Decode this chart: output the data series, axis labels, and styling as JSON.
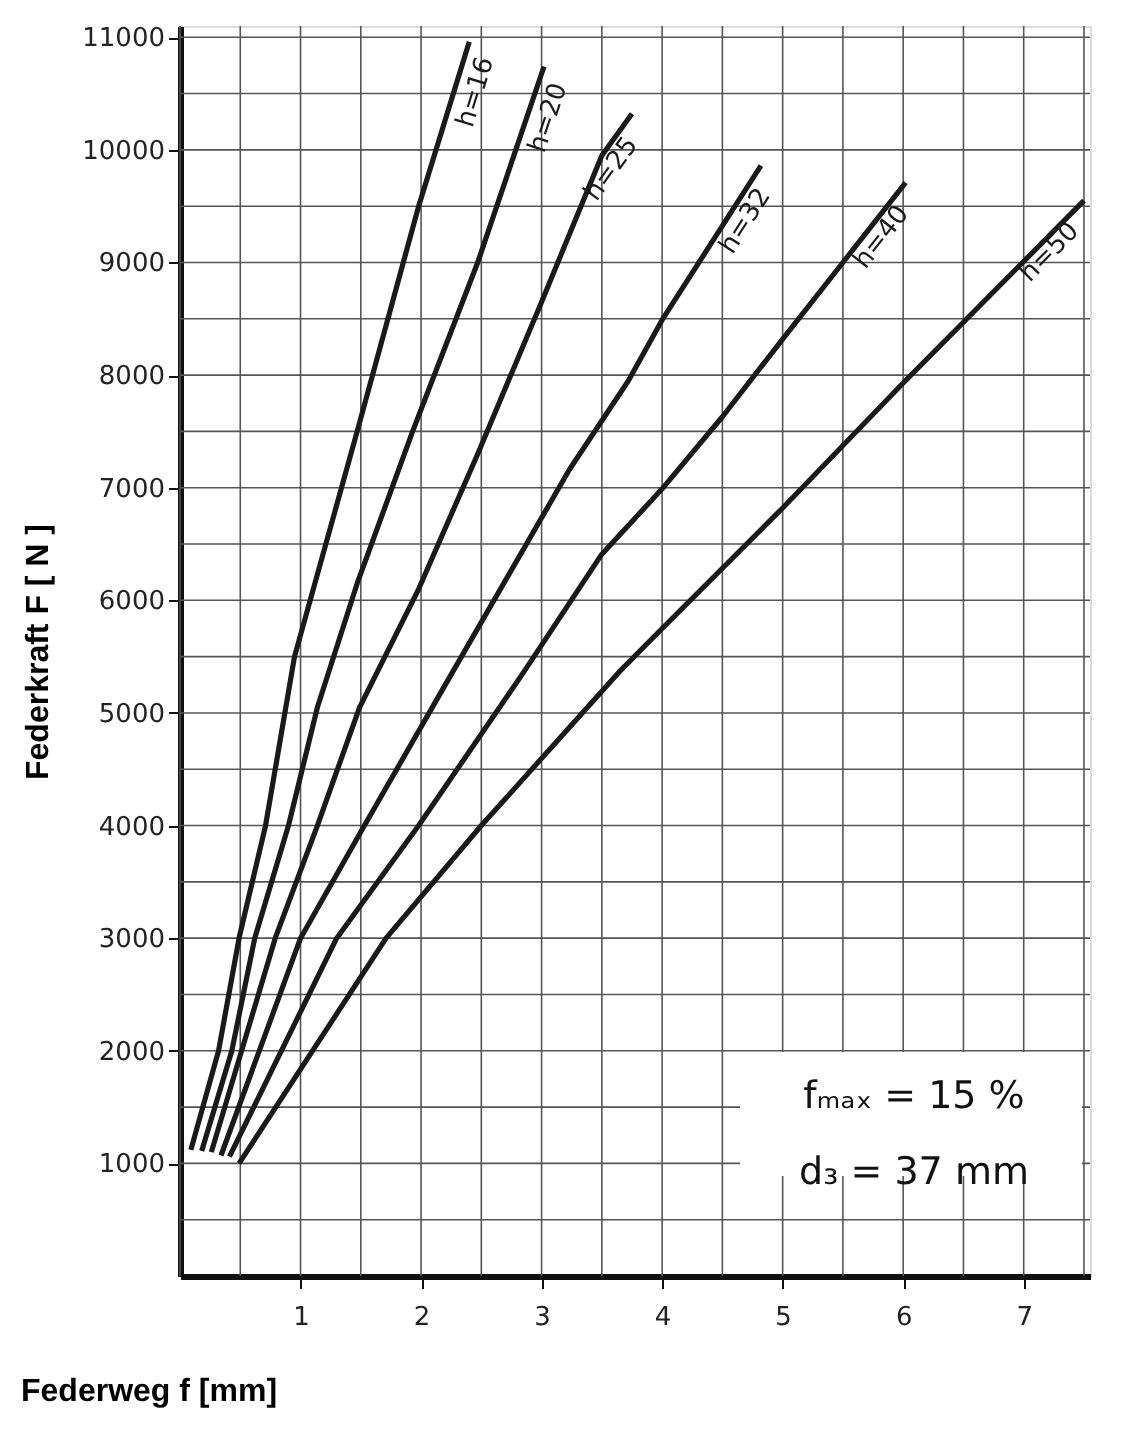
{
  "chart_data": {
    "type": "line",
    "xlabel": "Federweg f [mm]",
    "ylabel": "Federkraft F [ N ]",
    "xlim": [
      0,
      7.55
    ],
    "ylim": [
      0,
      11100
    ],
    "xticks": [
      {
        "value": 0,
        "label": null
      },
      {
        "value": 0.5,
        "label": null
      },
      1,
      {
        "value": 1.5,
        "label": null
      },
      2,
      {
        "value": 2.5,
        "label": null
      },
      3,
      {
        "value": 3.5,
        "label": null
      },
      4,
      {
        "value": 4.5,
        "label": null
      },
      5,
      {
        "value": 5.5,
        "label": null
      },
      6,
      {
        "value": 6.5,
        "label": null
      },
      7,
      {
        "value": 7.5,
        "label": null
      }
    ],
    "yticks": [
      {
        "value": 500,
        "label": null
      },
      1000,
      {
        "value": 1500,
        "label": null
      },
      2000,
      {
        "value": 2500,
        "label": null
      },
      3000,
      {
        "value": 3500,
        "label": null
      },
      4000,
      {
        "value": 4500,
        "label": null
      },
      5000,
      {
        "value": 5500,
        "label": null
      },
      6000,
      {
        "value": 6500,
        "label": null
      },
      7000,
      {
        "value": 7500,
        "label": null
      },
      8000,
      {
        "value": 8500,
        "label": null
      },
      9000,
      {
        "value": 9500,
        "label": null
      },
      10000,
      {
        "value": 10500,
        "label": null
      },
      11000
    ],
    "grid": true,
    "marker": "none",
    "line_style": "solid",
    "series": [
      {
        "name": "h=16",
        "color": "#1a1a1a",
        "x": [
          0.09,
          0.32,
          0.49,
          0.71,
          0.95,
          1.47,
          1.98,
          2.4
        ],
        "values": [
          1120,
          2000,
          3000,
          4000,
          5500,
          7500,
          9500,
          10960
        ]
      },
      {
        "name": "h=20",
        "color": "#1a1a1a",
        "x": [
          0.18,
          0.43,
          0.62,
          0.9,
          1.14,
          1.47,
          1.93,
          2.47,
          3.02
        ],
        "values": [
          1110,
          2000,
          3000,
          4000,
          5050,
          6150,
          7500,
          9000,
          10740
        ]
      },
      {
        "name": "h=25",
        "color": "#1a1a1a",
        "x": [
          0.26,
          0.79,
          1.14,
          1.49,
          1.98,
          2.47,
          3.0,
          3.5,
          3.75
        ],
        "values": [
          1100,
          3000,
          4000,
          5050,
          6100,
          7300,
          8650,
          9950,
          10320
        ]
      },
      {
        "name": "h=32",
        "color": "#1a1a1a",
        "x": [
          0.34,
          1.0,
          1.53,
          2.26,
          3.23,
          3.72,
          4.0,
          4.82
        ],
        "values": [
          1070,
          3000,
          4000,
          5360,
          7160,
          7950,
          8490,
          9860
        ]
      },
      {
        "name": "h=40",
        "color": "#1a1a1a",
        "x": [
          0.41,
          1.3,
          1.98,
          2.85,
          3.5,
          4.0,
          4.5,
          5.0,
          5.5,
          6.02
        ],
        "values": [
          1060,
          3000,
          4000,
          5360,
          6410,
          6990,
          7630,
          8320,
          9000,
          9710
        ]
      },
      {
        "name": "h=50",
        "color": "#1a1a1a",
        "x": [
          0.49,
          1.71,
          2.5,
          3.64,
          4.0,
          5.0,
          6.0,
          7.0,
          7.5
        ],
        "values": [
          1000,
          3000,
          4000,
          5360,
          5750,
          6820,
          7930,
          9010,
          9550
        ]
      }
    ],
    "annotations": [
      "fₘₐₓ = 15 %",
      "d₃ = 37 mm"
    ]
  }
}
